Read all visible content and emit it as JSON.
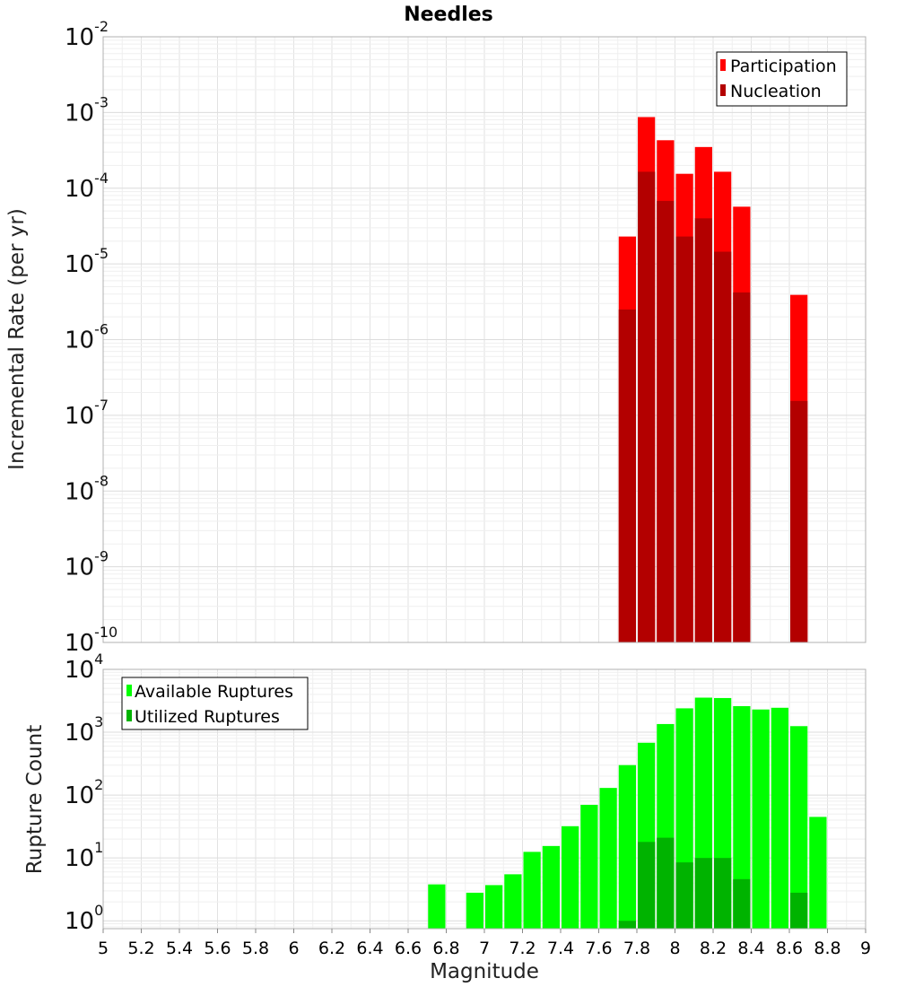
{
  "chart_data": [
    {
      "id": "top",
      "type": "bar",
      "title": "Needles",
      "xlabel": "",
      "ylabel": "Incremental Rate (per yr)",
      "yscale": "log",
      "ylim": [
        1e-10,
        0.01
      ],
      "xlim": [
        5,
        9
      ],
      "y_ticks": [
        {
          "base": "10",
          "exp": "-10"
        },
        {
          "base": "10",
          "exp": "-9"
        },
        {
          "base": "10",
          "exp": "-8"
        },
        {
          "base": "10",
          "exp": "-7"
        },
        {
          "base": "10",
          "exp": "-6"
        },
        {
          "base": "10",
          "exp": "-5"
        },
        {
          "base": "10",
          "exp": "-4"
        },
        {
          "base": "10",
          "exp": "-3"
        },
        {
          "base": "10",
          "exp": "-2"
        }
      ],
      "grid": true,
      "legend_position": "top-right",
      "x": [
        7.75,
        7.85,
        7.95,
        8.05,
        8.15,
        8.25,
        8.35,
        8.45,
        8.55,
        8.65
      ],
      "series": [
        {
          "name": "Participation",
          "color": "#ff0000",
          "values": [
            2.3e-05,
            0.00087,
            0.00043,
            0.000155,
            0.00035,
            0.000165,
            5.7e-05,
            null,
            null,
            3.9e-06
          ]
        },
        {
          "name": "Nucleation",
          "color": "#b30000",
          "values": [
            2.5e-06,
            0.000165,
            6.8e-05,
            2.3e-05,
            4e-05,
            1.45e-05,
            4.2e-06,
            null,
            null,
            1.55e-07
          ]
        }
      ]
    },
    {
      "id": "bottom",
      "type": "bar",
      "title": "",
      "xlabel": "Magnitude",
      "ylabel": "Rupture Count",
      "yscale": "log",
      "ylim": [
        0.75,
        10000
      ],
      "xlim": [
        5,
        9
      ],
      "x_ticks": [
        "5",
        "5.2",
        "5.4",
        "5.6",
        "5.8",
        "6",
        "6.2",
        "6.4",
        "6.6",
        "6.8",
        "7",
        "7.2",
        "7.4",
        "7.6",
        "7.8",
        "8",
        "8.2",
        "8.4",
        "8.6",
        "8.8",
        "9"
      ],
      "y_ticks": [
        {
          "base": "10",
          "exp": "0"
        },
        {
          "base": "10",
          "exp": "1"
        },
        {
          "base": "10",
          "exp": "2"
        },
        {
          "base": "10",
          "exp": "3"
        },
        {
          "base": "10",
          "exp": "4"
        }
      ],
      "grid": true,
      "legend_position": "top-left",
      "x": [
        6.75,
        6.85,
        6.95,
        7.05,
        7.15,
        7.25,
        7.35,
        7.45,
        7.55,
        7.65,
        7.75,
        7.85,
        7.95,
        8.05,
        8.15,
        8.25,
        8.35,
        8.45,
        8.55,
        8.65,
        8.75
      ],
      "series": [
        {
          "name": "Available Ruptures",
          "color": "#00ff00",
          "values": [
            3.8,
            null,
            2.8,
            3.7,
            5.5,
            12.5,
            15.5,
            32,
            70,
            130,
            300,
            680,
            1350,
            2400,
            3550,
            3500,
            2600,
            2300,
            2450,
            1250,
            45
          ]
        },
        {
          "name": "Utilized Ruptures",
          "color": "#00b300",
          "values": [
            null,
            null,
            null,
            null,
            null,
            null,
            null,
            null,
            null,
            null,
            1.0,
            18,
            21,
            8.5,
            10,
            10,
            4.6,
            null,
            null,
            2.8,
            null
          ]
        }
      ]
    }
  ]
}
